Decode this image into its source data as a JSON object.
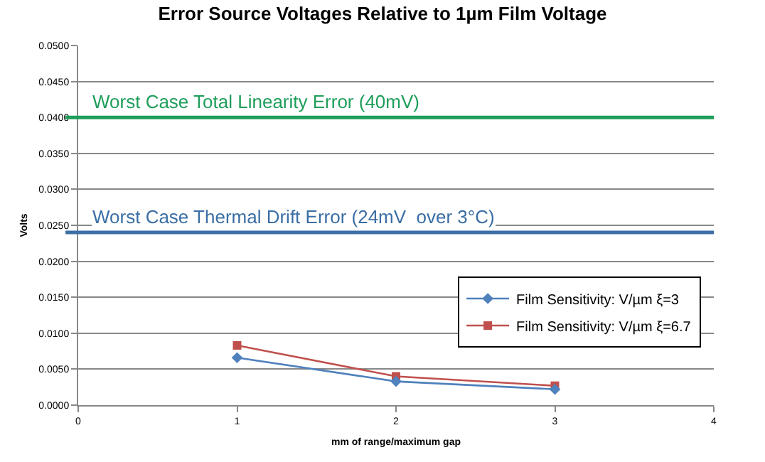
{
  "chart_data": {
    "type": "line",
    "title": "Error Source Voltages Relative to 1µm Film Voltage",
    "xlabel": "mm of range/maximum gap",
    "ylabel": "Volts",
    "x": [
      1,
      2,
      3
    ],
    "series": [
      {
        "name": "Film Sensitivity: V/µm ξ=3",
        "color": "#4f81bd",
        "marker": "diamond",
        "values": [
          0.0066,
          0.0033,
          0.0022
        ]
      },
      {
        "name": "Film Sensitivity: V/µm ξ=6.7",
        "color": "#c0504d",
        "marker": "square",
        "values": [
          0.0083,
          0.004,
          0.0027
        ]
      }
    ],
    "xlim": [
      0,
      4
    ],
    "xticks": [
      0,
      1,
      2,
      3,
      4
    ],
    "ylim": [
      0,
      0.05
    ],
    "yticks": [
      {
        "value": 0,
        "label": "0.0000"
      },
      {
        "value": 0.005,
        "label": "0.0050"
      },
      {
        "value": 0.01,
        "label": "0.0100"
      },
      {
        "value": 0.015,
        "label": "0.0150"
      },
      {
        "value": 0.02,
        "label": "0.0200"
      },
      {
        "value": 0.025,
        "label": "0.0250"
      },
      {
        "value": 0.03,
        "label": "0.0300"
      },
      {
        "value": 0.035,
        "label": "0.0350"
      },
      {
        "value": 0.04,
        "label": "0.0400"
      },
      {
        "value": 0.045,
        "label": "0.0450"
      },
      {
        "value": 0.05,
        "label": "0.0500"
      }
    ],
    "ref_lines": [
      {
        "axis": "y",
        "value": 0.04,
        "label": "Worst Case Total Linearity Error (40mV)",
        "color": "#1e9e5a"
      },
      {
        "axis": "y",
        "value": 0.024,
        "label": "Worst Case Thermal Drift Error (24mV  over 3°C)",
        "color": "#3a6ea5"
      }
    ],
    "grid": "y",
    "legend": "bottom right",
    "line_style": "solid"
  }
}
